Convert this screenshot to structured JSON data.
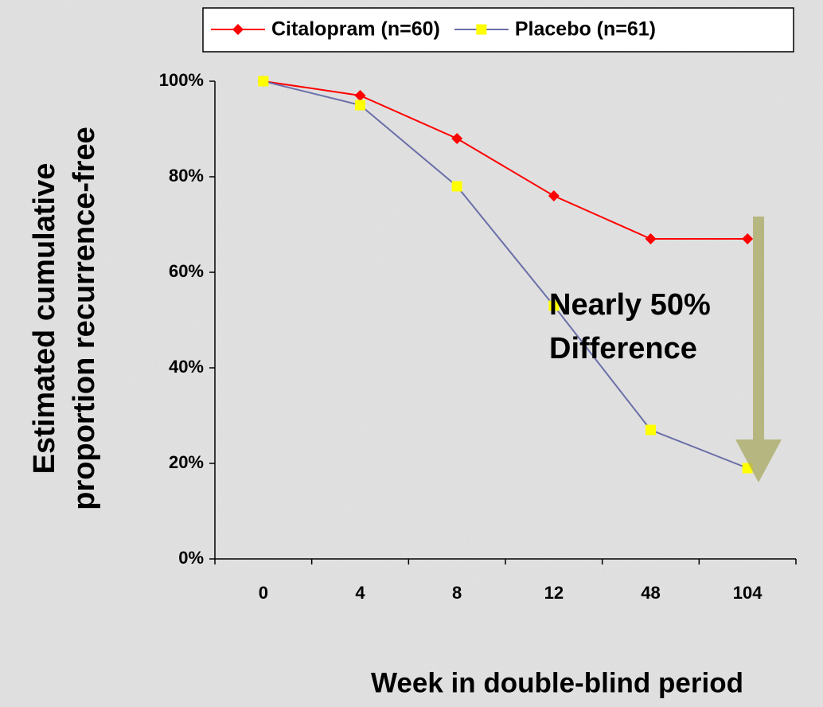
{
  "chart_data": {
    "type": "line",
    "ylabel": [
      "Estimated cumulative",
      "proportion recurrence-free"
    ],
    "xlabel": "Week in double-blind period",
    "annotation": [
      "Nearly 50%",
      "Difference"
    ],
    "categories": [
      "0",
      "4",
      "8",
      "12",
      "48",
      "104"
    ],
    "series": [
      {
        "name": "Citalopram (n=60)",
        "color": "#ff0000",
        "marker_color": "#ff0000",
        "marker": "diamond",
        "values": [
          100,
          97,
          88,
          76,
          67,
          67
        ]
      },
      {
        "name": "Placebo (n=61)",
        "color": "#6b6fa8",
        "marker_color": "#ffff00",
        "marker": "square",
        "values": [
          100,
          95,
          78,
          53,
          27,
          19
        ]
      }
    ],
    "ylim": [
      0,
      100
    ],
    "yticks": [
      {
        "value": 0,
        "label": "0%"
      },
      {
        "value": 20,
        "label": "20%"
      },
      {
        "value": 40,
        "label": "40%"
      },
      {
        "value": 60,
        "label": "60%"
      },
      {
        "value": 80,
        "label": "80%"
      },
      {
        "value": 100,
        "label": "100%"
      }
    ],
    "legend": "top"
  }
}
